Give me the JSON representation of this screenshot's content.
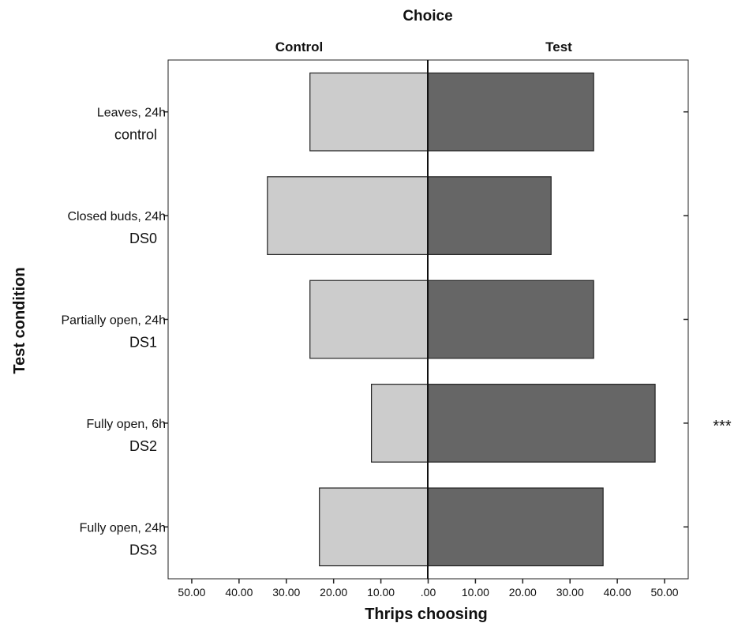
{
  "chart_data": {
    "type": "bar",
    "title": "Choice",
    "xlabel": "Thrips choosing",
    "ylabel": "Test condition",
    "side_labels": {
      "left": "Control",
      "right": "Test"
    },
    "categories": [
      {
        "line1": "Leaves, 24h",
        "line2": "control"
      },
      {
        "line1": "Closed buds, 24h",
        "line2": "DS0"
      },
      {
        "line1": "Partially open, 24h",
        "line2": "DS1"
      },
      {
        "line1": "Fully open, 6h",
        "line2": "DS2"
      },
      {
        "line1": "Fully open, 24h",
        "line2": "DS3"
      }
    ],
    "series": [
      {
        "values": [
          25,
          34,
          25,
          12,
          23
        ],
        "color": "#cccccc"
      },
      {
        "values": [
          35,
          26,
          35,
          48,
          37
        ],
        "color": "#666666"
      }
    ],
    "annotations": [
      "",
      "",
      "",
      "***",
      ""
    ],
    "x_ticks_left": [
      "50.00",
      "40.00",
      "30.00",
      "20.00",
      "10.00"
    ],
    "x_tick_center": ".00",
    "x_ticks_right": [
      "10.00",
      "20.00",
      "30.00",
      "40.00",
      "50.00"
    ],
    "xlim": [
      -55,
      55
    ],
    "grid": false
  }
}
